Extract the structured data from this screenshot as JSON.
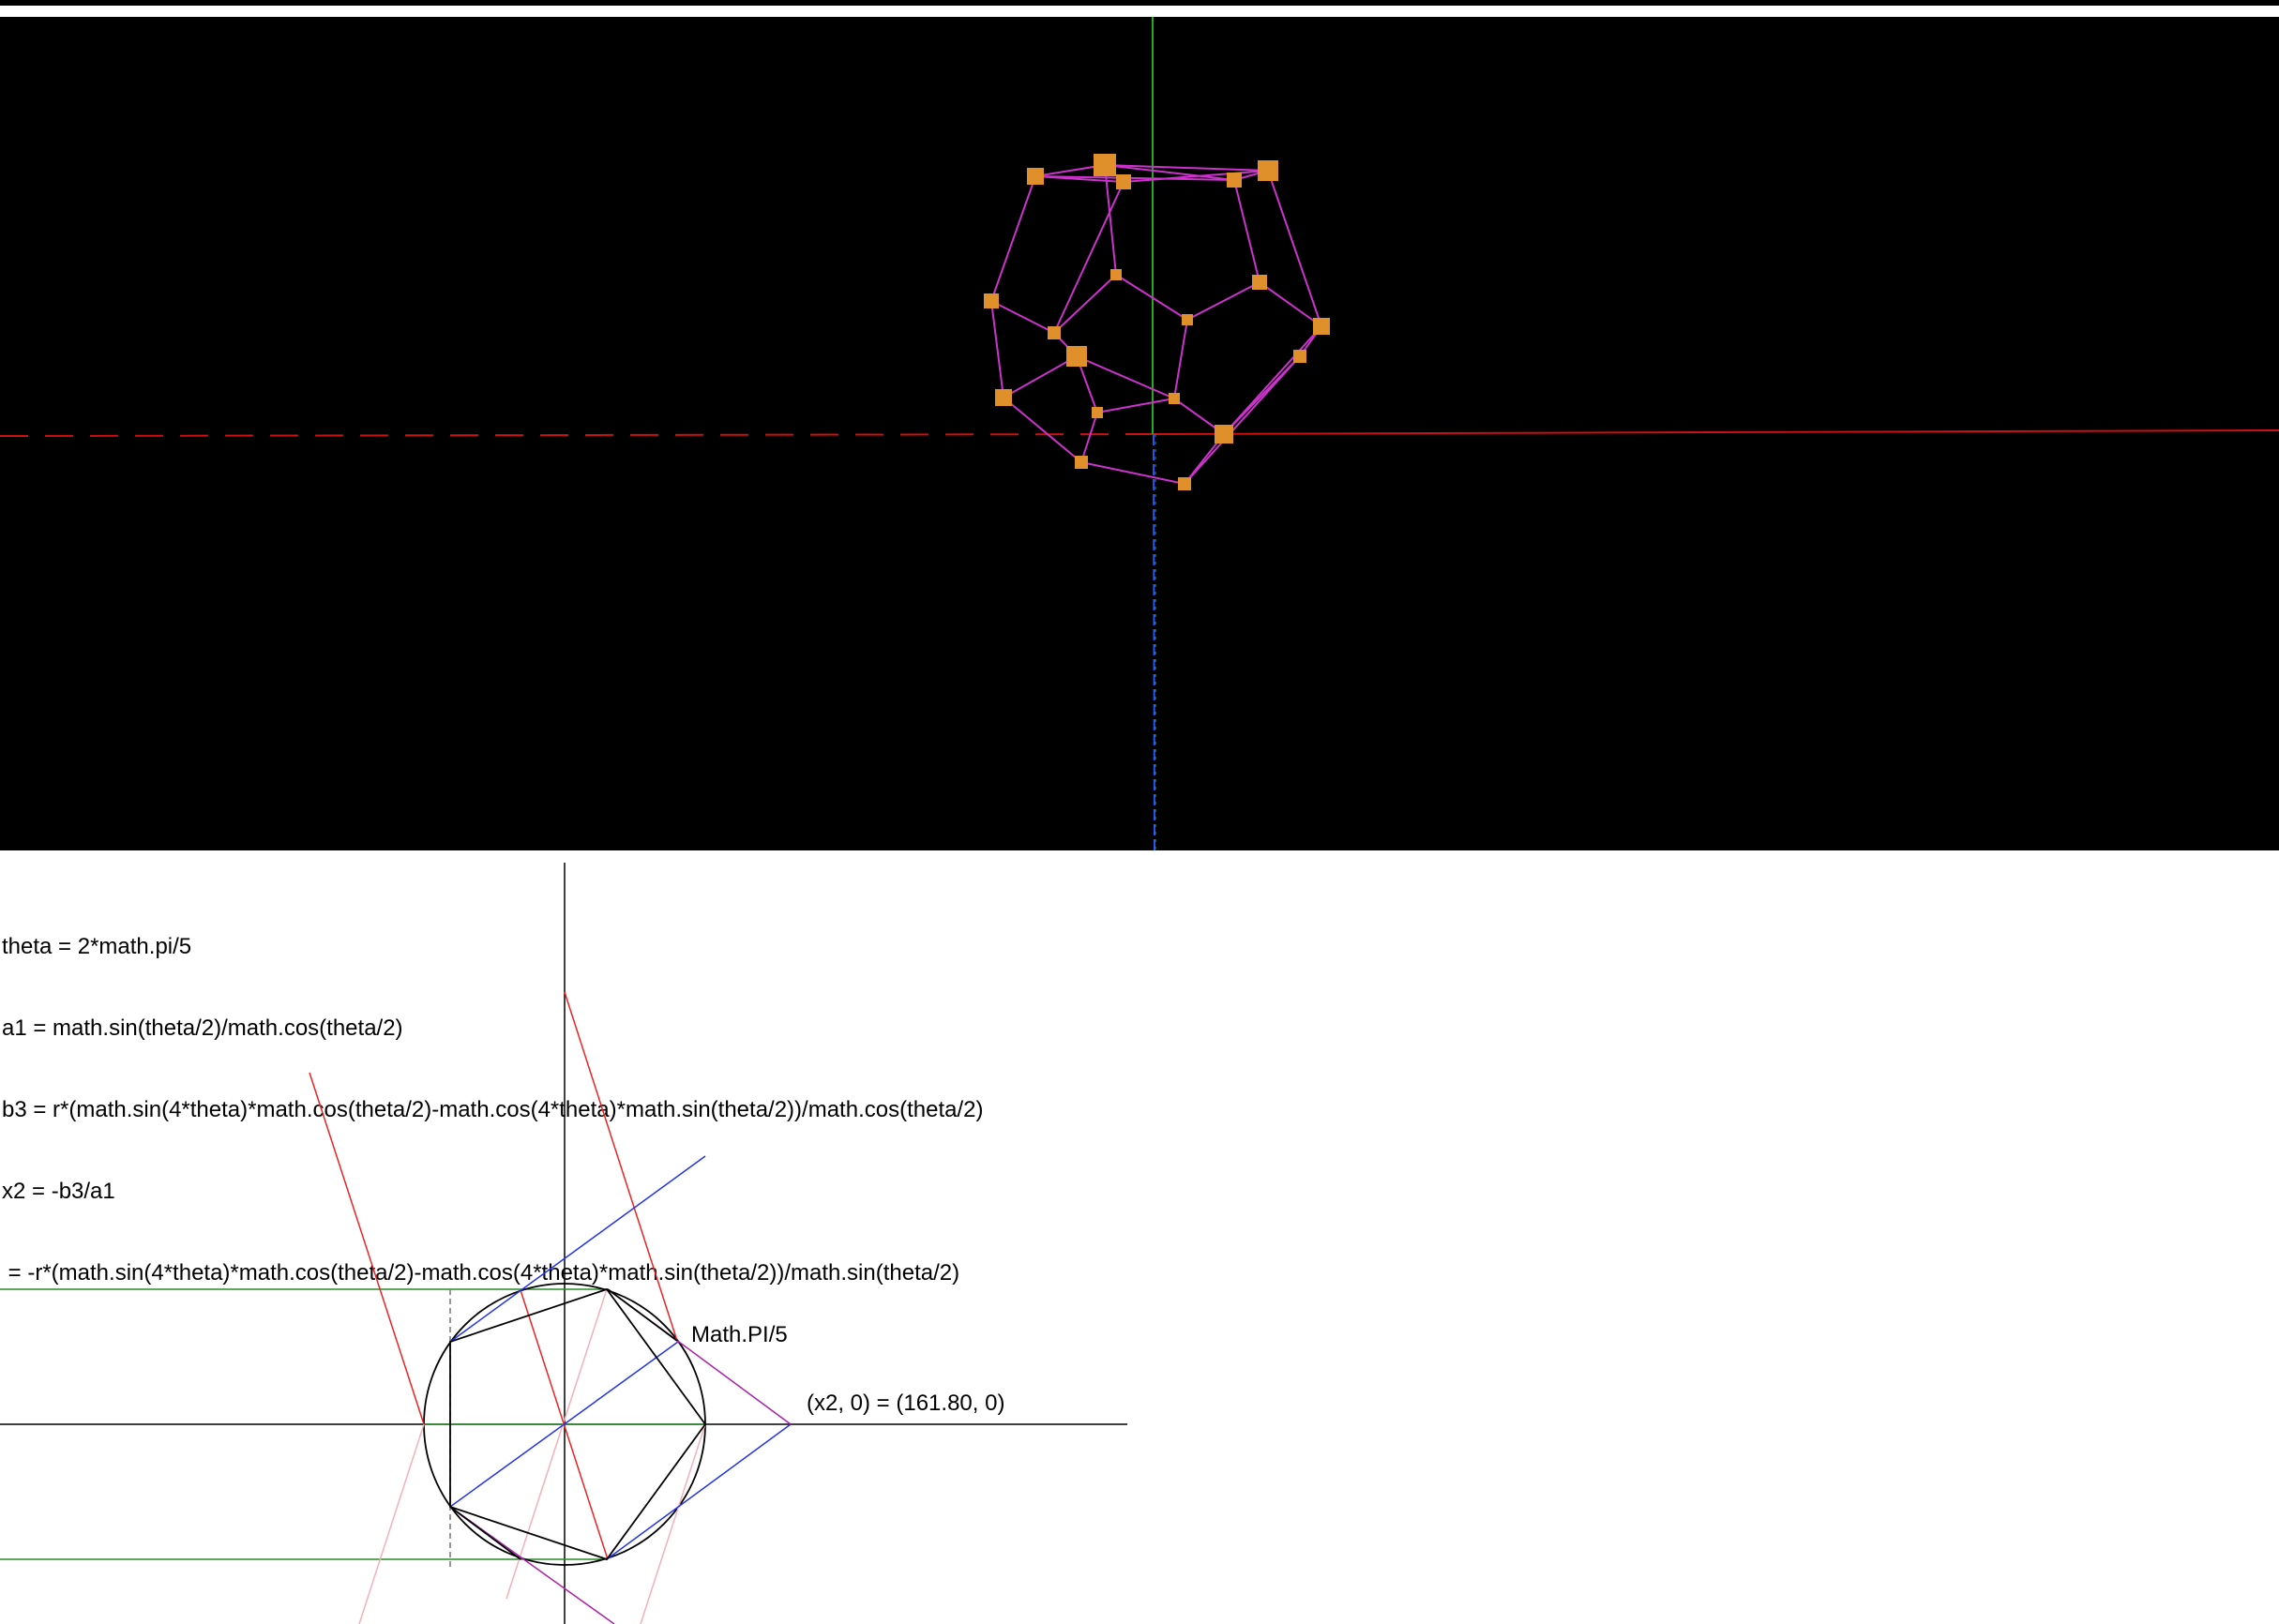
{
  "formula": {
    "lines": [
      "theta = 2*math.pi/5",
      "a1 = math.sin(theta/2)/math.cos(theta/2)",
      "b3 = r*(math.sin(4*theta)*math.cos(theta/2)-math.cos(4*theta)*math.sin(theta/2))/math.cos(theta/2)",
      "x2 = -b3/a1",
      " = -r*(math.sin(4*theta)*math.cos(theta/2)-math.cos(4*theta)*math.sin(theta/2))/math.sin(theta/2)"
    ]
  },
  "diagram": {
    "angle_label": "Math.PI/5",
    "point_label": "(x2, 0) = (161.80, 0)"
  },
  "viewport": {
    "background": "#000000",
    "edge_color": "#cc33cc",
    "vertex_color": "#e0902a",
    "x_axis_color": "#cc1111",
    "y_axis_color": "#22aa22",
    "z_axis_color": "#2255ff"
  }
}
